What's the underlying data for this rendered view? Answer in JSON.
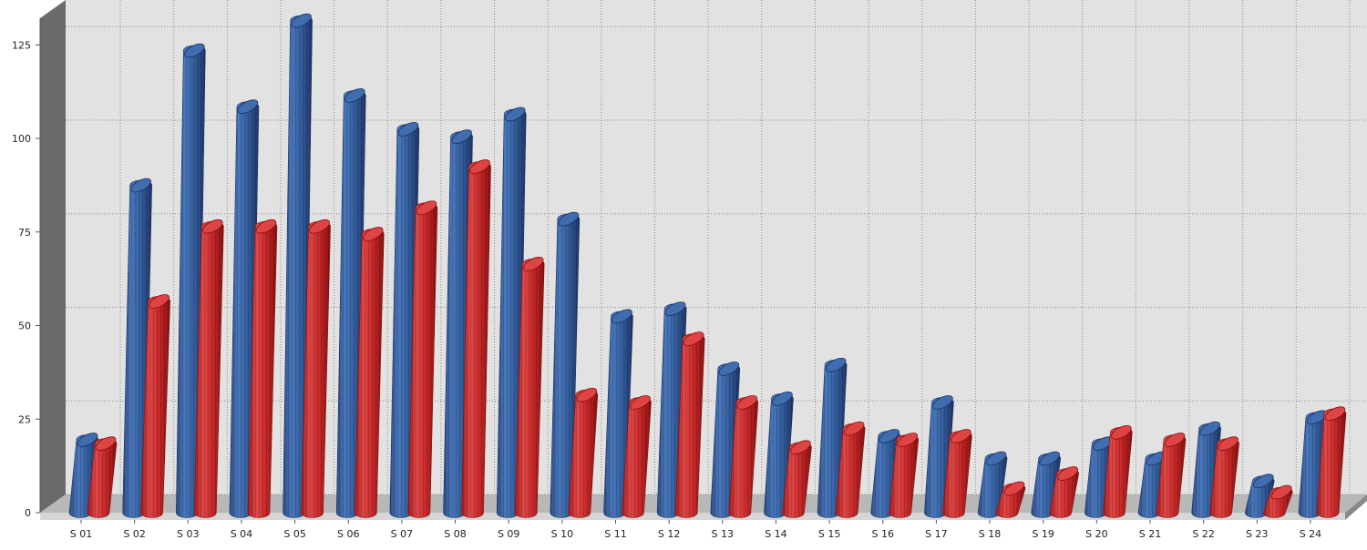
{
  "chart_data": {
    "type": "bar",
    "title": "",
    "xlabel": "",
    "ylabel": "",
    "ylim": [
      0,
      130
    ],
    "yticks": [
      0,
      25,
      50,
      75,
      100,
      125
    ],
    "grid": true,
    "legend": "none",
    "categories": [
      "S 01",
      "S 02",
      "S 03",
      "S 04",
      "S 05",
      "S 06",
      "S 07",
      "S 08",
      "S 09",
      "S 10",
      "S 11",
      "S 12",
      "S 13",
      "S 14",
      "S 15",
      "S 16",
      "S 17",
      "S 18",
      "S 19",
      "S 20",
      "S 21",
      "S 22",
      "S 23",
      "S 24"
    ],
    "series": [
      {
        "color": "#3a66a8",
        "values": [
          18,
          86,
          122,
          107,
          130,
          110,
          101,
          99,
          105,
          77,
          51,
          53,
          37,
          29,
          38,
          19,
          28,
          13,
          13,
          17,
          13,
          21,
          7,
          24
        ]
      },
      {
        "color": "#d43232",
        "values": [
          17,
          55,
          75,
          75,
          75,
          73,
          80,
          91,
          65,
          30,
          28,
          45,
          28,
          16,
          21,
          18,
          19,
          5,
          9,
          20,
          18,
          17,
          4,
          25
        ]
      }
    ]
  }
}
